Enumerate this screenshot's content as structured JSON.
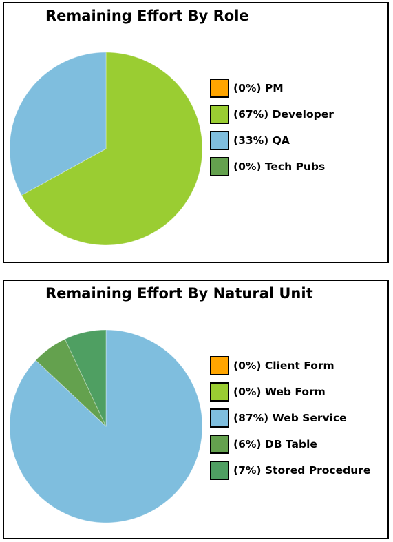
{
  "chart_data": [
    {
      "type": "pie",
      "title": "Remaining Effort By Role",
      "categories": [
        "PM",
        "Developer",
        "QA",
        "Tech Pubs"
      ],
      "values": [
        0,
        67,
        33,
        0
      ],
      "legend_labels": [
        "(0%) PM",
        "(67%) Developer",
        "(33%) QA",
        "(0%) Tech Pubs"
      ],
      "colors": [
        "#FFA500",
        "#9ACD32",
        "#7FBEDE",
        "#64A14E"
      ],
      "legend_position": "right"
    },
    {
      "type": "pie",
      "title": "Remaining Effort By Natural Unit",
      "categories": [
        "Client Form",
        "Web Form",
        "Web Service",
        "DB Table",
        "Stored Procedure"
      ],
      "values": [
        0,
        0,
        87,
        6,
        7
      ],
      "legend_labels": [
        "(0%) Client Form",
        "(0%) Web Form",
        "(87%) Web Service",
        "(6%) DB Table",
        "(7%) Stored Procedure"
      ],
      "colors": [
        "#FFA500",
        "#9ACD32",
        "#7FBEDE",
        "#64A14E",
        "#4F9F62"
      ],
      "legend_position": "right"
    }
  ]
}
